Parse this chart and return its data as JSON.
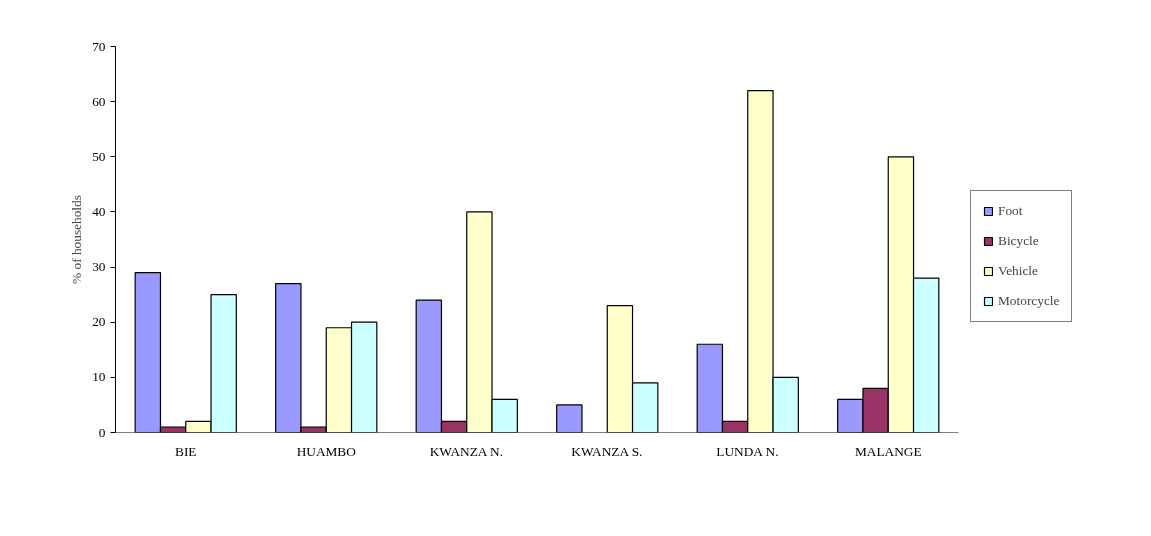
{
  "chart_data": {
    "type": "bar",
    "ylabel": "% of households",
    "categories": [
      "BIE",
      "HUAMBO",
      "KWANZA N.",
      "KWANZA S.",
      "LUNDA N.",
      "MALANGE"
    ],
    "series": [
      {
        "name": "Foot",
        "color": "#9999ff",
        "values": [
          29,
          27,
          24,
          5,
          16,
          6
        ]
      },
      {
        "name": "Bicycle",
        "color": "#993366",
        "values": [
          1,
          1,
          2,
          null,
          2,
          8
        ]
      },
      {
        "name": "Vehicle",
        "color": "#ffffcc",
        "values": [
          2,
          19,
          40,
          23,
          62,
          50
        ]
      },
      {
        "name": "Motorcycle",
        "color": "#ccffff",
        "values": [
          25,
          20,
          6,
          9,
          10,
          28
        ]
      }
    ],
    "ylim": [
      0,
      70
    ],
    "yticks": [
      0,
      10,
      20,
      30,
      40,
      50,
      60,
      70
    ],
    "grid": false,
    "legend": "right"
  }
}
